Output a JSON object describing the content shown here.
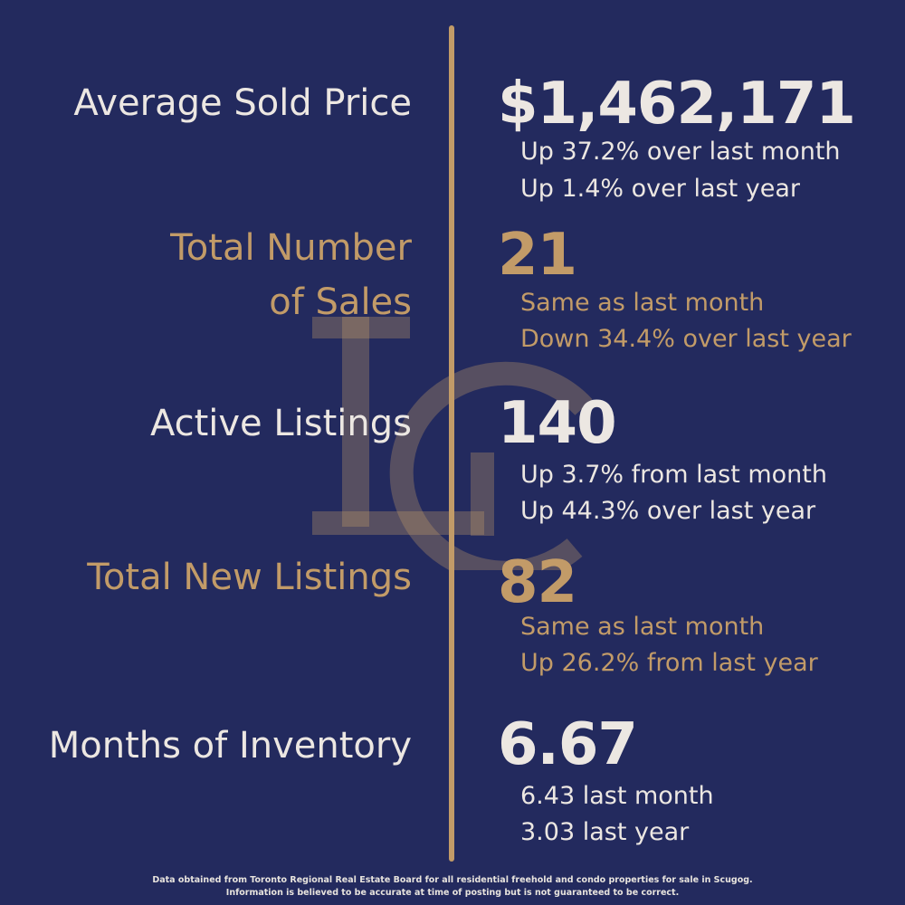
{
  "colors": {
    "background": "#232a5e",
    "light_text": "#ece7e2",
    "gold_accent": "#c29b68",
    "watermark": "#c29b68"
  },
  "watermark_icon": "lc-monogram-logo",
  "stats": [
    {
      "label": "Average Sold Price",
      "value": "$1,462,171",
      "change_month": "Up 37.2% over last month",
      "change_year": "Up 1.4% over last year"
    },
    {
      "label_line1": "Total Number",
      "label_line2": "of Sales",
      "value": "21",
      "change_month": "Same as last month",
      "change_year": "Down 34.4% over last year"
    },
    {
      "label": "Active Listings",
      "value": "140",
      "change_month": "Up 3.7% from last month",
      "change_year": "Up 44.3% over last year"
    },
    {
      "label": "Total New Listings",
      "value": "82",
      "change_month": "Same as last month",
      "change_year": "Up 26.2% from last year"
    },
    {
      "label": "Months of Inventory",
      "value": "6.67",
      "change_month": "6.43 last month",
      "change_year": "3.03 last year"
    }
  ],
  "footer": {
    "line1": "Data obtained from Toronto Regional Real Estate Board for all residential freehold and condo properties for sale in Scugog.",
    "line2": "Information is believed to be accurate at time of posting but is not guaranteed to be correct."
  }
}
